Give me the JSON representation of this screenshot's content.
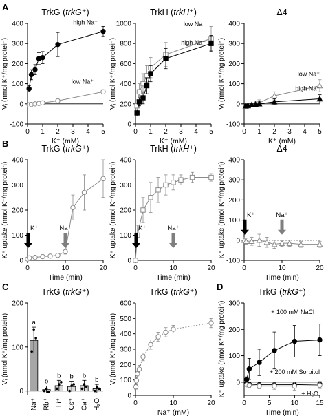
{
  "chart_data": [
    {
      "panel": "A",
      "type": "scatter",
      "title": "TrkG (trkG⁺)",
      "title_parts": [
        "TrkG (",
        "trkG",
        "⁺)"
      ],
      "xlabel": "K⁺ (mM)",
      "ylabel": "Vᵢ (nmol K⁺/mg protein)",
      "xlim": [
        0,
        5
      ],
      "ylim": [
        -100,
        400
      ],
      "xticks": [
        0,
        1,
        2,
        3,
        4,
        5
      ],
      "yticks": [
        -100,
        0,
        100,
        200,
        300,
        400
      ],
      "series": [
        {
          "name": "high Na⁺",
          "marker": "filled-circle",
          "x": [
            0.1,
            0.25,
            0.5,
            0.75,
            1,
            2,
            5
          ],
          "y": [
            75,
            145,
            170,
            225,
            230,
            295,
            360
          ],
          "err": [
            15,
            25,
            25,
            30,
            30,
            60,
            25
          ]
        },
        {
          "name": "low Na⁺",
          "marker": "open-circle",
          "x": [
            0.1,
            0.25,
            0.5,
            0.75,
            1,
            2,
            5
          ],
          "y": [
            -5,
            -3,
            0,
            2,
            5,
            15,
            60
          ],
          "err": [
            5,
            5,
            5,
            5,
            5,
            8,
            10
          ]
        }
      ]
    },
    {
      "panel": "A",
      "type": "scatter",
      "title": "TrkH (trkH⁺)",
      "title_parts": [
        "TrkH (",
        "trkH",
        "⁺)"
      ],
      "xlabel": "K⁺ (mM)",
      "ylabel": "Vᵢ (nmol K⁺/mg protein)",
      "xlim": [
        0,
        5
      ],
      "ylim": [
        0,
        1000
      ],
      "xticks": [
        0,
        1,
        2,
        3,
        4,
        5
      ],
      "yticks": [
        0,
        200,
        400,
        600,
        800,
        1000
      ],
      "series": [
        {
          "name": "low Na⁺",
          "marker": "open-square",
          "x": [
            0.1,
            0.25,
            0.5,
            0.75,
            1,
            2,
            5
          ],
          "y": [
            180,
            320,
            400,
            480,
            560,
            690,
            850
          ],
          "err": [
            60,
            80,
            100,
            100,
            100,
            120,
            120
          ]
        },
        {
          "name": "high Na⁺",
          "marker": "filled-square",
          "x": [
            0.1,
            0.25,
            0.5,
            0.75,
            1,
            2,
            5
          ],
          "y": [
            110,
            220,
            260,
            380,
            500,
            650,
            800
          ],
          "err": [
            30,
            40,
            60,
            80,
            80,
            100,
            80
          ]
        }
      ]
    },
    {
      "panel": "A",
      "type": "scatter",
      "title": "Δ4",
      "xlabel": "K⁺ (mM)",
      "ylabel": "Vᵢ (nmol K⁺/mg protein)",
      "xlim": [
        0,
        5
      ],
      "ylim": [
        -100,
        400
      ],
      "xticks": [
        0,
        1,
        2,
        3,
        4,
        5
      ],
      "yticks": [
        -100,
        0,
        100,
        200,
        300,
        400
      ],
      "series": [
        {
          "name": "low Na⁺",
          "marker": "open-triangle",
          "x": [
            0.1,
            0.25,
            0.5,
            0.75,
            1,
            2,
            5
          ],
          "y": [
            -12,
            -10,
            -5,
            0,
            5,
            40,
            90
          ],
          "err": [
            10,
            10,
            10,
            10,
            15,
            20,
            30
          ]
        },
        {
          "name": "high Na⁺",
          "marker": "filled-triangle",
          "x": [
            0.1,
            0.25,
            0.5,
            0.75,
            1,
            2,
            5
          ],
          "y": [
            -10,
            -8,
            -5,
            -3,
            0,
            10,
            25
          ],
          "err": [
            8,
            8,
            8,
            8,
            10,
            15,
            20
          ]
        }
      ]
    },
    {
      "panel": "B",
      "type": "line",
      "title": "TrkG (trkG⁺)",
      "title_parts": [
        "TrkG (",
        "trkG",
        "⁺)"
      ],
      "xlabel": "Time (min)",
      "ylabel": "K⁺ uptake (nmol K⁺/mg protein)",
      "xlim": [
        0,
        20
      ],
      "ylim": [
        0,
        400
      ],
      "xticks": [
        0,
        10,
        20
      ],
      "yticks": [
        0,
        100,
        200,
        300,
        400
      ],
      "arrows": [
        {
          "label": "K⁺",
          "x": 0,
          "color": "#000000"
        },
        {
          "label": "Na⁺",
          "x": 10,
          "color": "#7f7f7f"
        }
      ],
      "series": [
        {
          "marker": "open-circle",
          "x": [
            0,
            0.5,
            2,
            4,
            6,
            8,
            10,
            12,
            15,
            20
          ],
          "y": [
            5,
            10,
            12,
            15,
            17,
            20,
            35,
            210,
            270,
            325
          ],
          "err": [
            3,
            3,
            3,
            4,
            4,
            5,
            10,
            50,
            70,
            75
          ]
        }
      ]
    },
    {
      "panel": "B",
      "type": "line",
      "title": "TrkH (trkH⁺)",
      "title_parts": [
        "TrkH (",
        "trkH",
        "⁺)"
      ],
      "xlabel": "Time (min)",
      "ylabel": "K⁺ uptake (nmol K⁺/mg protein)",
      "xlim": [
        0,
        20
      ],
      "ylim": [
        0,
        400
      ],
      "xticks": [
        0,
        10,
        20
      ],
      "yticks": [
        0,
        100,
        200,
        300,
        400
      ],
      "arrows": [
        {
          "label": "K⁺",
          "x": 0,
          "color": "#000000"
        },
        {
          "label": "Na⁺",
          "x": 10,
          "color": "#7f7f7f"
        }
      ],
      "series": [
        {
          "marker": "open-square",
          "x": [
            0,
            0.5,
            2,
            4,
            6,
            8,
            10,
            12,
            15,
            20
          ],
          "y": [
            0,
            100,
            200,
            250,
            280,
            300,
            310,
            320,
            330,
            330
          ],
          "err": [
            5,
            40,
            50,
            60,
            50,
            40,
            30,
            20,
            20,
            15
          ]
        }
      ]
    },
    {
      "panel": "B",
      "type": "line",
      "title": "Δ4",
      "xlabel": "Time (min)",
      "ylabel": "K⁺ uptake (nmol K⁺/mg protein)",
      "xlim": [
        0,
        20
      ],
      "ylim": [
        -100,
        400
      ],
      "xticks": [
        0,
        10,
        20
      ],
      "yticks": [
        -100,
        0,
        100,
        200,
        300,
        400
      ],
      "arrows": [
        {
          "label": "K⁺",
          "x": 0,
          "color": "#000000"
        },
        {
          "label": "Na⁺",
          "x": 10,
          "color": "#7f7f7f"
        }
      ],
      "series": [
        {
          "marker": "open-triangle",
          "x": [
            0,
            0.5,
            2,
            4,
            6,
            8,
            10,
            12,
            15,
            20
          ],
          "y": [
            0,
            -5,
            -5,
            0,
            -10,
            -20,
            -15,
            -15,
            -20,
            -20
          ],
          "err": [
            10,
            15,
            20,
            30,
            25,
            20,
            15,
            15,
            15,
            15
          ]
        }
      ]
    },
    {
      "panel": "C",
      "type": "bar",
      "title": "TrkG (trkG⁺)",
      "title_parts": [
        "TrkG (",
        "trkG",
        "⁺)"
      ],
      "xlabel": "",
      "ylabel": "Vᵢ (nmol K⁺/mg protein)",
      "ylim": [
        -10,
        200
      ],
      "yticks": [
        0,
        100,
        200
      ],
      "categories": [
        "Na⁺",
        "Rb⁺",
        "Li⁺",
        "Cs⁺",
        "Ca⁺",
        "H₂O"
      ],
      "values": [
        115,
        3,
        12,
        10,
        12,
        5
      ],
      "err": [
        30,
        8,
        12,
        12,
        12,
        10
      ],
      "letters": [
        "a",
        "b",
        "b",
        "b",
        "b",
        "b"
      ],
      "points": [
        [
          90,
          140,
          120
        ],
        [
          0,
          5,
          -2
        ],
        [
          5,
          15,
          20
        ],
        [
          0,
          12,
          15
        ],
        [
          5,
          15,
          10
        ],
        [
          0,
          8,
          5
        ]
      ]
    },
    {
      "panel": "C",
      "type": "scatter",
      "title": "TrkG (trkG⁺)",
      "title_parts": [
        "TrkG (",
        "trkG",
        "⁺)"
      ],
      "xlabel": "Na⁺ (mM)",
      "ylabel": "Vᵢ (nmol K⁺/mg protein)",
      "xlim": [
        0,
        20
      ],
      "ylim": [
        0,
        600
      ],
      "xticks": [
        0,
        10,
        20
      ],
      "yticks": [
        0,
        100,
        200,
        300,
        400,
        500,
        600
      ],
      "series": [
        {
          "marker": "open-circle",
          "x": [
            0.1,
            0.25,
            0.5,
            1,
            2,
            4,
            6,
            8,
            10,
            20
          ],
          "y": [
            55,
            95,
            140,
            170,
            250,
            330,
            380,
            410,
            430,
            470
          ],
          "err": [
            15,
            20,
            20,
            25,
            25,
            30,
            30,
            30,
            25,
            30
          ]
        }
      ]
    },
    {
      "panel": "D",
      "type": "line",
      "title": "TrkG (trkG⁺)",
      "title_parts": [
        "TrkG (",
        "trkG",
        "⁺)"
      ],
      "xlabel": "Time (min)",
      "ylabel": "K⁺ uptake (nmol K⁺/mg protein)",
      "xlim": [
        0,
        15
      ],
      "ylim": [
        -50,
        300
      ],
      "xticks": [
        0,
        5,
        10,
        15
      ],
      "yticks": [
        0,
        100,
        200,
        300
      ],
      "series": [
        {
          "name": "+ 100 mM NaCl",
          "marker": "filled-circle",
          "x": [
            0.5,
            1,
            3,
            6,
            10,
            15
          ],
          "y": [
            10,
            50,
            75,
            120,
            155,
            160
          ],
          "err": [
            10,
            40,
            50,
            70,
            60,
            60
          ]
        },
        {
          "name": "+ 200 mM Sorbitol",
          "marker": "filled-circle",
          "x": [
            0.5,
            1,
            3,
            6,
            10,
            15
          ],
          "y": [
            -5,
            -8,
            -10,
            -10,
            -10,
            -8
          ],
          "err": [
            5,
            8,
            10,
            10,
            10,
            10
          ]
        },
        {
          "name": "+ H₂O",
          "marker": "open-circle",
          "x": [
            0.5,
            1,
            3,
            6,
            10,
            15
          ],
          "y": [
            -10,
            -12,
            -15,
            -15,
            -15,
            -12
          ],
          "err": [
            5,
            8,
            10,
            12,
            15,
            12
          ]
        }
      ]
    }
  ],
  "panel_letters": [
    "A",
    "B",
    "C",
    "D"
  ]
}
